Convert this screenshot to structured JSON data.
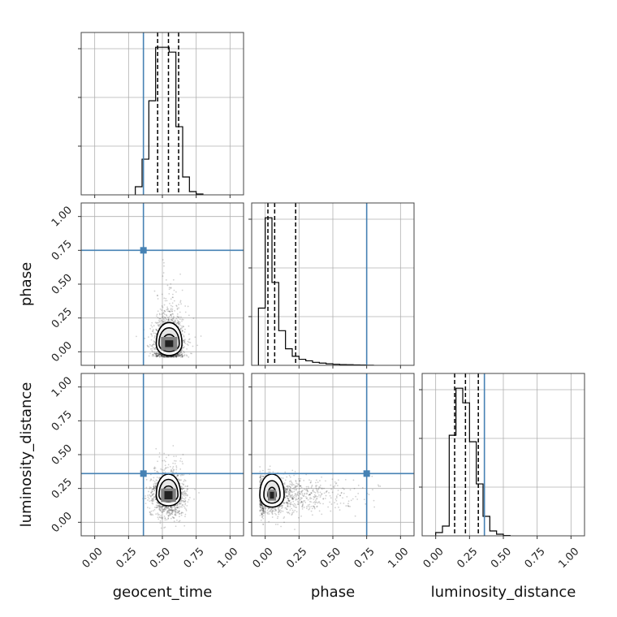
{
  "chart_data": {
    "type": "corner",
    "parameters": [
      "geocent_time",
      "phase",
      "luminosity_distance"
    ],
    "axis_range": [
      -0.1,
      1.1
    ],
    "ticks": [
      0.0,
      0.25,
      0.5,
      0.75,
      1.0
    ],
    "tick_labels": [
      "0.00",
      "0.25",
      "0.50",
      "0.75",
      "1.00"
    ],
    "truth_values": {
      "geocent_time": 0.36,
      "phase": 0.75,
      "luminosity_distance": 0.36
    },
    "truth_color": "#4682b4",
    "grid": true,
    "histograms": [
      {
        "parameter": "geocent_time",
        "bin_edges": [
          0.3,
          0.35,
          0.4,
          0.45,
          0.5,
          0.55,
          0.6,
          0.65,
          0.7,
          0.75,
          0.8
        ],
        "counts": [
          0.05,
          0.22,
          0.58,
          0.91,
          0.91,
          0.88,
          0.42,
          0.11,
          0.02,
          0.005
        ],
        "quantiles": [
          0.465,
          0.545,
          0.62
        ]
      },
      {
        "parameter": "phase",
        "bin_edges": [
          -0.05,
          0.0,
          0.05,
          0.1,
          0.15,
          0.2,
          0.25,
          0.3,
          0.35,
          0.4,
          0.45,
          0.5,
          0.55,
          0.6,
          0.65,
          0.7,
          0.75,
          0.8
        ],
        "counts": [
          0.38,
          0.98,
          0.55,
          0.23,
          0.11,
          0.06,
          0.04,
          0.03,
          0.02,
          0.015,
          0.01,
          0.007,
          0.005,
          0.004,
          0.003,
          0.002,
          0.001
        ],
        "quantiles": [
          0.02,
          0.07,
          0.225
        ]
      },
      {
        "parameter": "luminosity_distance",
        "bin_edges": [
          0.0,
          0.05,
          0.1,
          0.15,
          0.2,
          0.25,
          0.3,
          0.35,
          0.4,
          0.45,
          0.5,
          0.55
        ],
        "counts": [
          0.02,
          0.06,
          0.62,
          0.91,
          0.82,
          0.58,
          0.32,
          0.12,
          0.03,
          0.01,
          0.002
        ],
        "quantiles": [
          0.14,
          0.22,
          0.315
        ]
      }
    ],
    "pairs": [
      {
        "x": "geocent_time",
        "y": "phase",
        "center": [
          0.55,
          0.06
        ],
        "spread": [
          0.06,
          0.1
        ],
        "skew_y": 0.12,
        "contours": [
          [
            0.095,
            0.16,
            0.09
          ],
          [
            0.075,
            0.12,
            0.06
          ],
          [
            0.05,
            0.07,
            0.035
          ]
        ],
        "core": [
          [
            0.06,
            0.05
          ],
          [
            0.03,
            0.025
          ]
        ]
      },
      {
        "x": "geocent_time",
        "y": "luminosity_distance",
        "center": [
          0.545,
          0.2
        ],
        "spread": [
          0.06,
          0.08
        ],
        "skew_y": 0.04,
        "contours": [
          [
            0.09,
            0.16,
            0.08
          ],
          [
            0.07,
            0.12,
            0.05
          ],
          [
            0.045,
            0.07,
            0.03
          ]
        ],
        "core": [
          [
            0.055,
            0.05
          ],
          [
            0.03,
            0.03
          ]
        ]
      },
      {
        "x": "phase",
        "y": "luminosity_distance",
        "center": [
          0.05,
          0.2
        ],
        "spread": [
          0.1,
          0.07
        ],
        "skew_x": 0.25,
        "contours": [
          [
            0.09,
            0.16,
            0.09
          ],
          [
            0.06,
            0.11,
            0.06
          ],
          [
            0.03,
            0.06,
            0.03
          ]
        ],
        "core": [
          [
            0.03,
            0.04
          ],
          [
            0.015,
            0.025
          ]
        ]
      }
    ]
  }
}
